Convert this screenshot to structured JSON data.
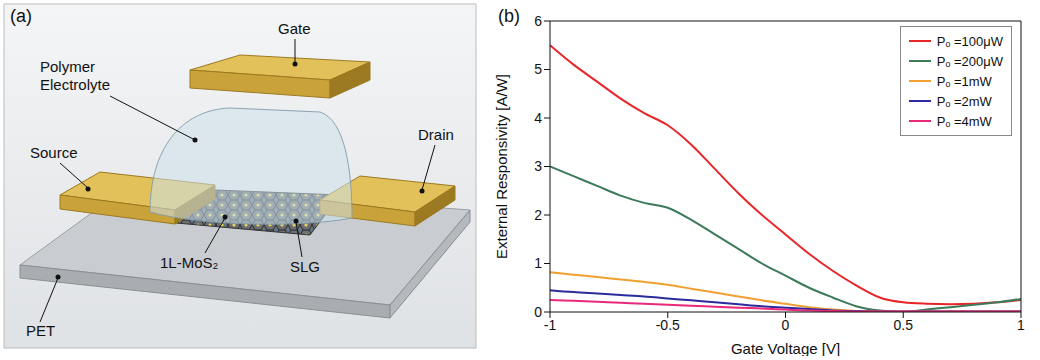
{
  "diagram": {
    "panel": "(a)",
    "labels": {
      "gate": "Gate",
      "electrolyte": "Polymer Electrolyte",
      "source": "Source",
      "drain": "Drain",
      "mos2": "1L-MoS₂",
      "slg": "SLG",
      "substrate": "PET"
    }
  },
  "chart_data": {
    "panel": "(b)",
    "type": "line",
    "x_label": "Gate Voltage [V]",
    "y_label": "External Responsivity [A/W]",
    "x": [
      -1,
      -0.9,
      -0.8,
      -0.7,
      -0.6,
      -0.5,
      -0.4,
      -0.3,
      -0.2,
      -0.1,
      0,
      0.1,
      0.2,
      0.3,
      0.4,
      0.5,
      0.6,
      0.7,
      0.8,
      0.9,
      1
    ],
    "series": [
      {
        "name": "Pₒ =100μW",
        "color": "#e8262a",
        "values": [
          5.5,
          5.1,
          4.75,
          4.4,
          4.1,
          3.85,
          3.45,
          2.95,
          2.45,
          2.0,
          1.6,
          1.2,
          0.85,
          0.55,
          0.3,
          0.2,
          0.17,
          0.16,
          0.17,
          0.2,
          0.25
        ]
      },
      {
        "name": "Pₒ =200μW",
        "color": "#3c7a5a",
        "values": [
          3.0,
          2.8,
          2.6,
          2.4,
          2.25,
          2.15,
          1.9,
          1.6,
          1.3,
          1.0,
          0.75,
          0.5,
          0.3,
          0.12,
          0.03,
          0.0,
          0.05,
          0.1,
          0.15,
          0.2,
          0.27
        ]
      },
      {
        "name": "Pₒ =1mW",
        "color": "#f0a030",
        "values": [
          0.82,
          0.77,
          0.72,
          0.67,
          0.62,
          0.56,
          0.48,
          0.4,
          0.32,
          0.24,
          0.17,
          0.1,
          0.05,
          0.02,
          0.01,
          0.01,
          0.01,
          0.01,
          0.01,
          0.01,
          0.01
        ]
      },
      {
        "name": "Pₒ =2mW",
        "color": "#2b2b9e",
        "values": [
          0.45,
          0.41,
          0.38,
          0.35,
          0.32,
          0.28,
          0.24,
          0.2,
          0.16,
          0.12,
          0.09,
          0.06,
          0.03,
          0.02,
          0.01,
          0.01,
          0.01,
          0.01,
          0.01,
          0.01,
          0.01
        ]
      },
      {
        "name": "Pₒ =4mW",
        "color": "#e8287a",
        "values": [
          0.25,
          0.23,
          0.21,
          0.19,
          0.17,
          0.15,
          0.13,
          0.11,
          0.09,
          0.07,
          0.05,
          0.03,
          0.02,
          0.01,
          0.01,
          0.01,
          0.01,
          0.01,
          0.01,
          0.01,
          0.01
        ]
      }
    ],
    "xlim": [
      -1,
      1
    ],
    "xticks": [
      -1,
      -0.5,
      0,
      0.5,
      1
    ],
    "ylim": [
      0,
      6
    ],
    "yticks": [
      0,
      1,
      2,
      3,
      4,
      5,
      6
    ],
    "grid": false,
    "legend": "upper right"
  }
}
